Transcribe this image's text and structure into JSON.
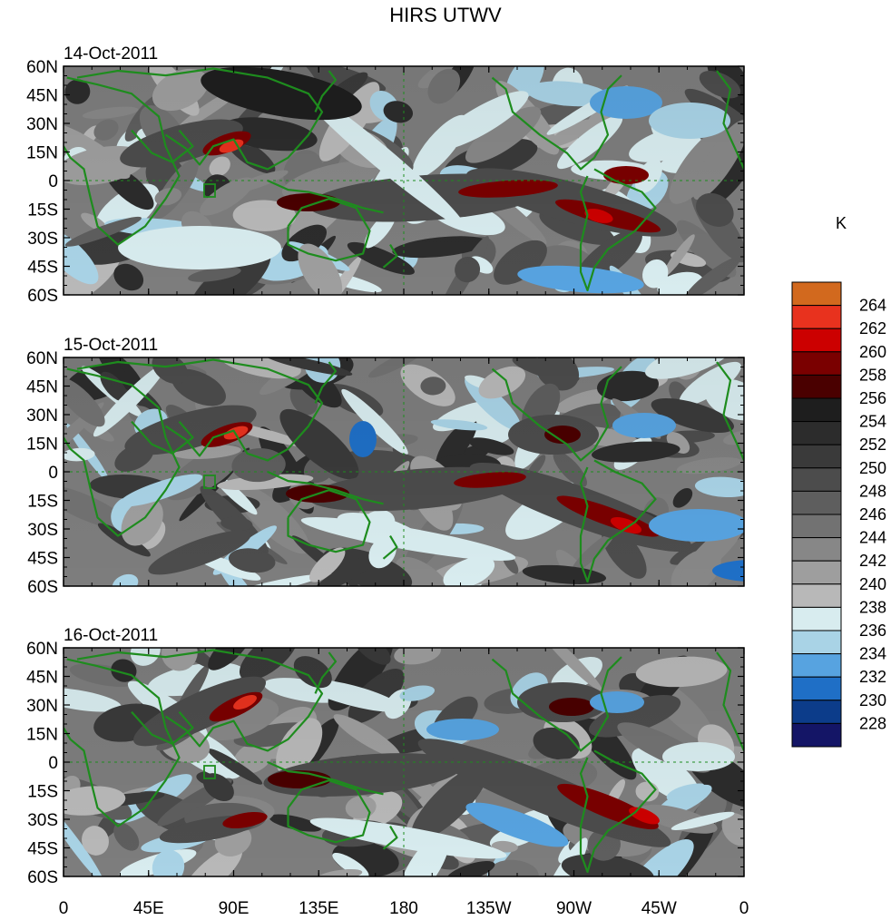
{
  "title": "HIRS UTWV",
  "panels": [
    {
      "date": "14-Oct-2011"
    },
    {
      "date": "15-Oct-2011"
    },
    {
      "date": "16-Oct-2011"
    }
  ],
  "lat_labels": [
    "60N",
    "45N",
    "30N",
    "15N",
    "0",
    "15S",
    "30S",
    "45S",
    "60S"
  ],
  "lon_labels": [
    "0",
    "45E",
    "90E",
    "135E",
    "180",
    "135W",
    "90W",
    "45W",
    "0"
  ],
  "colorbar": {
    "unit": "K",
    "levels": [
      "264",
      "262",
      "260",
      "258",
      "256",
      "254",
      "252",
      "250",
      "248",
      "246",
      "244",
      "242",
      "240",
      "238",
      "236",
      "234",
      "232",
      "230",
      "228"
    ],
    "colors": [
      "#d2691e",
      "#e8321e",
      "#cc0000",
      "#7a0000",
      "#4a0000",
      "#1e1e1e",
      "#2c2c2c",
      "#3a3a3a",
      "#4c4c4c",
      "#5e5e5e",
      "#727272",
      "#878787",
      "#9e9e9e",
      "#b8b8b8",
      "#d8ecef",
      "#a9d3e6",
      "#57a3e0",
      "#1f6fc6",
      "#0c3c8a",
      "#141566"
    ]
  },
  "map_style": {
    "coastline_color": "#1e8c1e",
    "background_gray": "#7d7d7d"
  }
}
